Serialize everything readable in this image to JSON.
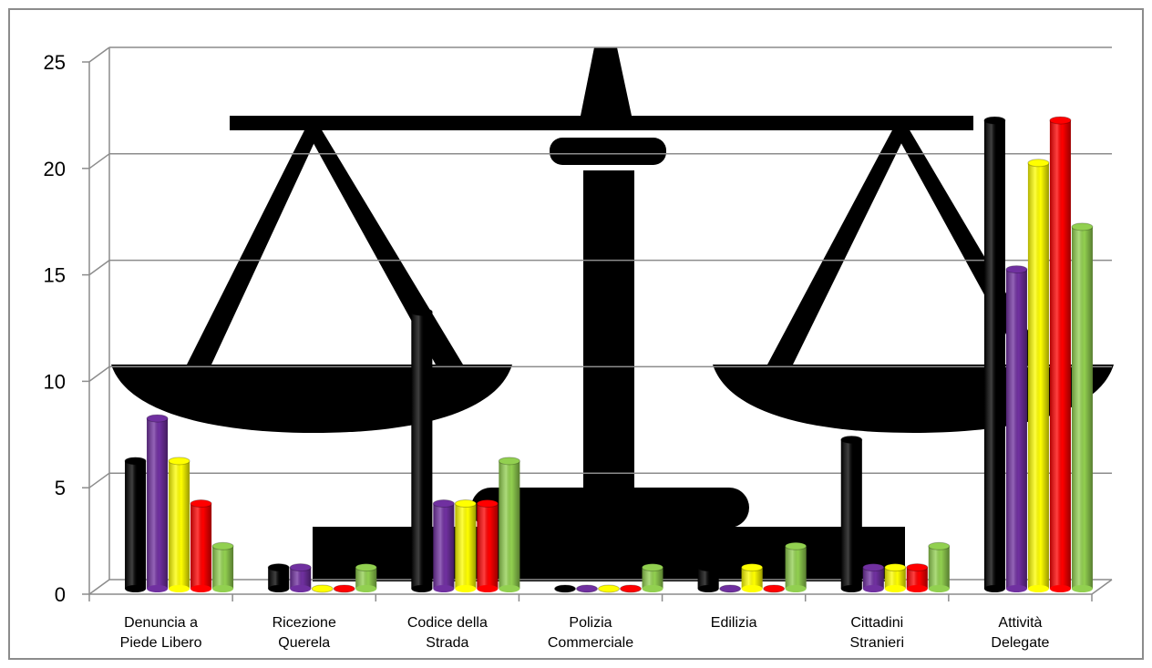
{
  "chart_data": {
    "type": "bar",
    "title": "",
    "xlabel": "",
    "ylabel": "",
    "ylim": [
      0,
      25
    ],
    "y_ticks": [
      0,
      5,
      10,
      15,
      20,
      25
    ],
    "grid": true,
    "legend": "none",
    "style": "3d-cylinder",
    "background_image": "scales-of-justice",
    "categories": [
      [
        "Denuncia a",
        "Piede Libero"
      ],
      [
        "Ricezione",
        "Querela"
      ],
      [
        "Codice della",
        "Strada"
      ],
      [
        "Polizia",
        "Commerciale"
      ],
      [
        "Edilizia"
      ],
      [
        "Cittadini",
        "Stranieri"
      ],
      [
        "Attività",
        "Delegate"
      ]
    ],
    "series": [
      {
        "color": "#000000",
        "values": [
          6,
          1,
          13,
          0,
          1,
          7,
          22
        ]
      },
      {
        "color": "#7030a0",
        "values": [
          8,
          1,
          4,
          0,
          0,
          1,
          15
        ]
      },
      {
        "color": "#ffff00",
        "values": [
          6,
          0,
          4,
          0,
          1,
          1,
          20
        ]
      },
      {
        "color": "#ff0000",
        "values": [
          4,
          0,
          4,
          0,
          0,
          1,
          22
        ]
      },
      {
        "color": "#92d050",
        "values": [
          2,
          1,
          6,
          1,
          2,
          2,
          17
        ]
      }
    ]
  }
}
